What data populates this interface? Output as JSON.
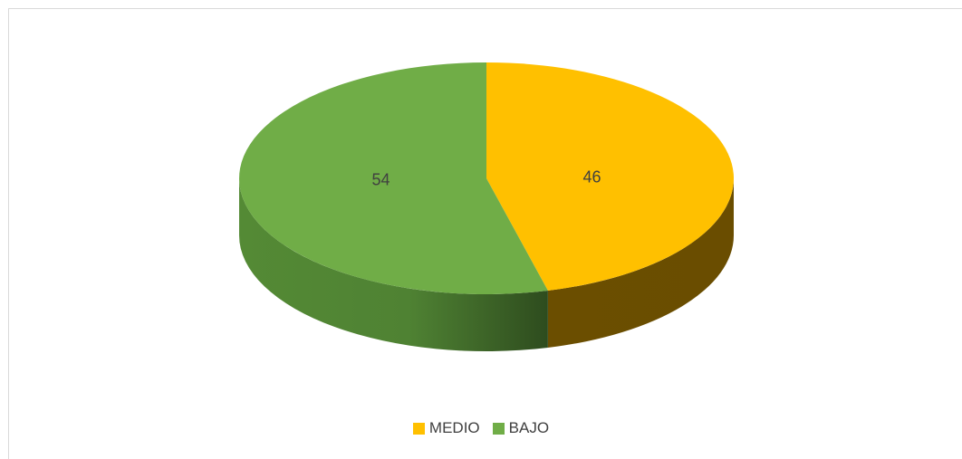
{
  "chart_data": {
    "type": "pie",
    "style": "3d",
    "categories": [
      "MEDIO",
      "BAJO"
    ],
    "values": [
      46,
      54
    ],
    "data_labels": [
      "46",
      "54"
    ],
    "colors": [
      "#FFC000",
      "#70AD47"
    ],
    "legend_position": "bottom"
  }
}
